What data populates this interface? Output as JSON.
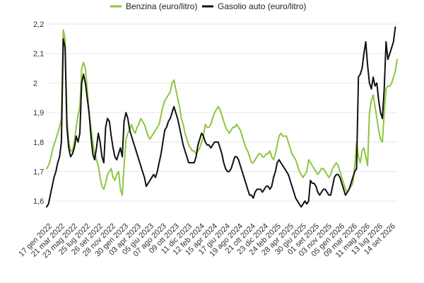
{
  "chart_data": {
    "type": "line",
    "title": "",
    "xlabel": "",
    "ylabel": "",
    "ylim": [
      1.55,
      2.2
    ],
    "yticks": [
      "1,6",
      "1,7",
      "1,8",
      "1,9",
      "2",
      "2,1",
      "2,2"
    ],
    "ytick_values": [
      1.6,
      1.7,
      1.8,
      1.9,
      2.0,
      2.1,
      2.2
    ],
    "grid": true,
    "legend_position": "top",
    "x_tick_labels": [
      "17 gen 2022",
      "21 mar 2022",
      "23 mag 2022",
      "25 lug 2022",
      "26 set 2022",
      "28 nov 2022",
      "30 gen 2023",
      "03 apr 2023",
      "05 giu 2023",
      "07 ago 2023",
      "09 ott 2023",
      "11 dic 2023",
      "12 feb 2024",
      "15 apr 2024",
      "17 giu 2024",
      "19 ago 2024",
      "21 ott 2024",
      "23 dic 2024",
      "24 feb 2025",
      "28 apr 2025",
      "30 giu 2025",
      "01 set 2025",
      "03 nov 2025",
      "05 gen 2026",
      "09 mar 2026",
      "11 mag 2026",
      "13 lug 2026",
      "14 set 2026"
    ],
    "series": [
      {
        "name": "Benzina (euro/litro)",
        "color": "#8dc63f",
        "values": [
          1.71,
          1.72,
          1.74,
          1.77,
          1.79,
          1.81,
          1.83,
          1.85,
          1.88,
          2.18,
          2.15,
          1.88,
          1.8,
          1.77,
          1.77,
          1.8,
          1.85,
          1.89,
          1.92,
          2.05,
          2.07,
          2.05,
          1.98,
          1.9,
          1.85,
          1.8,
          1.76,
          1.74,
          1.72,
          1.68,
          1.65,
          1.64,
          1.66,
          1.69,
          1.7,
          1.71,
          1.68,
          1.67,
          1.69,
          1.7,
          1.64,
          1.62,
          1.72,
          1.81,
          1.83,
          1.84,
          1.86,
          1.84,
          1.83,
          1.85,
          1.86,
          1.88,
          1.87,
          1.86,
          1.84,
          1.82,
          1.81,
          1.82,
          1.83,
          1.84,
          1.85,
          1.86,
          1.89,
          1.92,
          1.94,
          1.95,
          1.96,
          1.97,
          2.0,
          2.01,
          1.98,
          1.95,
          1.92,
          1.88,
          1.86,
          1.83,
          1.81,
          1.79,
          1.78,
          1.77,
          1.77,
          1.76,
          1.77,
          1.78,
          1.8,
          1.82,
          1.86,
          1.85,
          1.85,
          1.86,
          1.88,
          1.9,
          1.91,
          1.92,
          1.91,
          1.89,
          1.87,
          1.85,
          1.84,
          1.83,
          1.84,
          1.85,
          1.85,
          1.86,
          1.85,
          1.84,
          1.82,
          1.8,
          1.78,
          1.77,
          1.75,
          1.73,
          1.73,
          1.74,
          1.75,
          1.76,
          1.76,
          1.75,
          1.75,
          1.76,
          1.76,
          1.77,
          1.75,
          1.74,
          1.76,
          1.79,
          1.82,
          1.83,
          1.82,
          1.82,
          1.82,
          1.8,
          1.78,
          1.76,
          1.75,
          1.74,
          1.72,
          1.7,
          1.69,
          1.68,
          1.69,
          1.7,
          1.74,
          1.73,
          1.72,
          1.71,
          1.7,
          1.69,
          1.7,
          1.71,
          1.71,
          1.7,
          1.69,
          1.68,
          1.69,
          1.71,
          1.72,
          1.73,
          1.72,
          1.7,
          1.68,
          1.66,
          1.64,
          1.63,
          1.64,
          1.65,
          1.66,
          1.72,
          1.8,
          1.75,
          1.73,
          1.77,
          1.78,
          1.75,
          1.72,
          1.9,
          1.94,
          1.96,
          1.92,
          1.88,
          1.84,
          1.81,
          1.8,
          1.9,
          1.98,
          1.99,
          1.99,
          2.0,
          2.02,
          2.04,
          2.08
        ]
      },
      {
        "name": "Gasolio auto (euro/litro)",
        "color": "#111111",
        "values": [
          1.58,
          1.59,
          1.62,
          1.65,
          1.68,
          1.7,
          1.73,
          1.75,
          1.8,
          2.15,
          2.12,
          1.85,
          1.78,
          1.75,
          1.76,
          1.78,
          1.82,
          1.8,
          1.83,
          2.0,
          2.03,
          2.0,
          1.95,
          1.9,
          1.82,
          1.76,
          1.74,
          1.78,
          1.83,
          1.8,
          1.75,
          1.73,
          1.85,
          1.88,
          1.87,
          1.82,
          1.78,
          1.75,
          1.74,
          1.76,
          1.78,
          1.75,
          1.87,
          1.9,
          1.88,
          1.84,
          1.82,
          1.8,
          1.78,
          1.76,
          1.74,
          1.72,
          1.7,
          1.68,
          1.65,
          1.66,
          1.67,
          1.68,
          1.69,
          1.68,
          1.7,
          1.73,
          1.76,
          1.8,
          1.84,
          1.85,
          1.87,
          1.88,
          1.9,
          1.92,
          1.9,
          1.88,
          1.85,
          1.82,
          1.79,
          1.77,
          1.75,
          1.73,
          1.73,
          1.73,
          1.73,
          1.75,
          1.79,
          1.81,
          1.83,
          1.82,
          1.8,
          1.79,
          1.79,
          1.78,
          1.79,
          1.8,
          1.8,
          1.8,
          1.78,
          1.76,
          1.73,
          1.71,
          1.7,
          1.7,
          1.71,
          1.73,
          1.75,
          1.75,
          1.74,
          1.72,
          1.7,
          1.68,
          1.66,
          1.64,
          1.62,
          1.62,
          1.61,
          1.63,
          1.64,
          1.64,
          1.64,
          1.63,
          1.64,
          1.65,
          1.65,
          1.64,
          1.65,
          1.68,
          1.7,
          1.73,
          1.74,
          1.73,
          1.72,
          1.71,
          1.7,
          1.69,
          1.67,
          1.65,
          1.63,
          1.61,
          1.6,
          1.59,
          1.58,
          1.59,
          1.6,
          1.59,
          1.6,
          1.67,
          1.66,
          1.66,
          1.65,
          1.63,
          1.62,
          1.63,
          1.64,
          1.64,
          1.63,
          1.62,
          1.62,
          1.65,
          1.68,
          1.69,
          1.69,
          1.68,
          1.66,
          1.64,
          1.62,
          1.63,
          1.64,
          1.66,
          1.68,
          1.7,
          1.71,
          2.02,
          2.03,
          2.05,
          2.1,
          2.14,
          2.06,
          2.0,
          1.98,
          2.02,
          1.99,
          2.0,
          1.94,
          1.9,
          1.88,
          1.98,
          2.14,
          2.08,
          2.1,
          2.12,
          2.14,
          2.19
        ]
      }
    ]
  }
}
